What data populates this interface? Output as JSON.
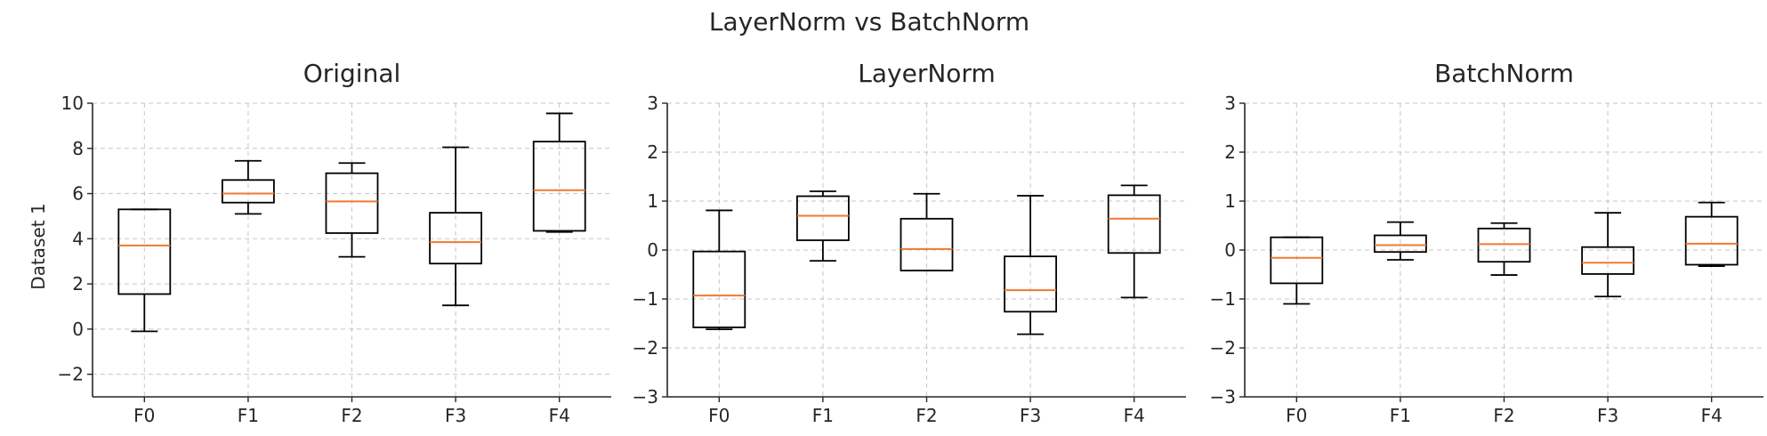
{
  "figure": {
    "suptitle": "LayerNorm vs BatchNorm",
    "row_label": "Dataset 1"
  },
  "chart_data": [
    {
      "type": "box",
      "title": "Original",
      "categories": [
        "F0",
        "F1",
        "F2",
        "F3",
        "F4"
      ],
      "ylim": [
        -3,
        10
      ],
      "yticks": [
        -2,
        0,
        2,
        4,
        6,
        8,
        10
      ],
      "ylabel": "Dataset 1",
      "grid": true,
      "boxes": [
        {
          "whislo": -0.1,
          "q1": 1.55,
          "med": 3.7,
          "q3": 5.3,
          "whishi": 5.3
        },
        {
          "whislo": 5.1,
          "q1": 5.6,
          "med": 6.0,
          "q3": 6.6,
          "whishi": 7.45
        },
        {
          "whislo": 3.2,
          "q1": 4.25,
          "med": 5.65,
          "q3": 6.9,
          "whishi": 7.35
        },
        {
          "whislo": 1.05,
          "q1": 2.9,
          "med": 3.85,
          "q3": 5.15,
          "whishi": 8.05
        },
        {
          "whislo": 4.3,
          "q1": 4.35,
          "med": 6.15,
          "q3": 8.3,
          "whishi": 9.55
        }
      ]
    },
    {
      "type": "box",
      "title": "LayerNorm",
      "categories": [
        "F0",
        "F1",
        "F2",
        "F3",
        "F4"
      ],
      "ylim": [
        -3,
        3
      ],
      "yticks": [
        -3,
        -2,
        -1,
        0,
        1,
        2,
        3
      ],
      "ylabel": "",
      "grid": true,
      "boxes": [
        {
          "whislo": -1.62,
          "q1": -1.58,
          "med": -0.93,
          "q3": -0.03,
          "whishi": 0.81
        },
        {
          "whislo": -0.22,
          "q1": 0.2,
          "med": 0.7,
          "q3": 1.1,
          "whishi": 1.2
        },
        {
          "whislo": -0.42,
          "q1": -0.42,
          "med": 0.02,
          "q3": 0.64,
          "whishi": 1.15
        },
        {
          "whislo": -1.72,
          "q1": -1.26,
          "med": -0.82,
          "q3": -0.13,
          "whishi": 1.11
        },
        {
          "whislo": -0.97,
          "q1": -0.06,
          "med": 0.64,
          "q3": 1.12,
          "whishi": 1.32
        }
      ]
    },
    {
      "type": "box",
      "title": "BatchNorm",
      "categories": [
        "F0",
        "F1",
        "F2",
        "F3",
        "F4"
      ],
      "ylim": [
        -3,
        3
      ],
      "yticks": [
        -3,
        -2,
        -1,
        0,
        1,
        2,
        3
      ],
      "ylabel": "",
      "grid": true,
      "boxes": [
        {
          "whislo": -1.1,
          "q1": -0.68,
          "med": -0.16,
          "q3": 0.26,
          "whishi": 0.26
        },
        {
          "whislo": -0.2,
          "q1": -0.04,
          "med": 0.1,
          "q3": 0.3,
          "whishi": 0.57
        },
        {
          "whislo": -0.51,
          "q1": -0.24,
          "med": 0.12,
          "q3": 0.44,
          "whishi": 0.55
        },
        {
          "whislo": -0.95,
          "q1": -0.49,
          "med": -0.26,
          "q3": 0.06,
          "whishi": 0.76
        },
        {
          "whislo": -0.33,
          "q1": -0.3,
          "med": 0.13,
          "q3": 0.68,
          "whishi": 0.97
        }
      ]
    }
  ]
}
